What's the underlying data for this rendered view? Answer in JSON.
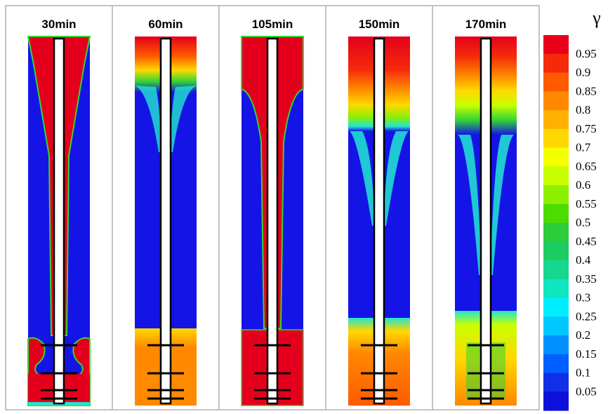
{
  "frames": [
    {
      "label": "30min",
      "variant": "early"
    },
    {
      "label": "60min",
      "variant": "mid"
    },
    {
      "label": "105min",
      "variant": "redfill"
    },
    {
      "label": "150min",
      "variant": "banded"
    },
    {
      "label": "170min",
      "variant": "late"
    }
  ],
  "legend": {
    "symbol": "γ",
    "ticks": [
      "0.95",
      "0.9",
      "0.85",
      "0.8",
      "0.75",
      "0.7",
      "0.65",
      "0.6",
      "0.55",
      "0.5",
      "0.45",
      "0.4",
      "0.35",
      "0.3",
      "0.25",
      "0.2",
      "0.15",
      "0.1",
      "0.05"
    ],
    "colors": [
      "#e8001a",
      "#f52a0c",
      "#ff5a00",
      "#ff8800",
      "#ffb000",
      "#ffd800",
      "#f4ff00",
      "#c8ff00",
      "#8cf000",
      "#4cdc00",
      "#2ccc3a",
      "#1ccc60",
      "#16d690",
      "#10e6c0",
      "#00eeff",
      "#00c8ff",
      "#0090ff",
      "#0060ff",
      "#1030e8",
      "#1010dd"
    ]
  },
  "palette": {
    "blue": "#1414e6",
    "red": "#e4001c",
    "orange": "#ff8a00",
    "green": "#33d633",
    "cyan": "#22e6d0",
    "rod": "#ffffff",
    "rod_edge": "#000000",
    "divider": "#b0b0b0"
  }
}
